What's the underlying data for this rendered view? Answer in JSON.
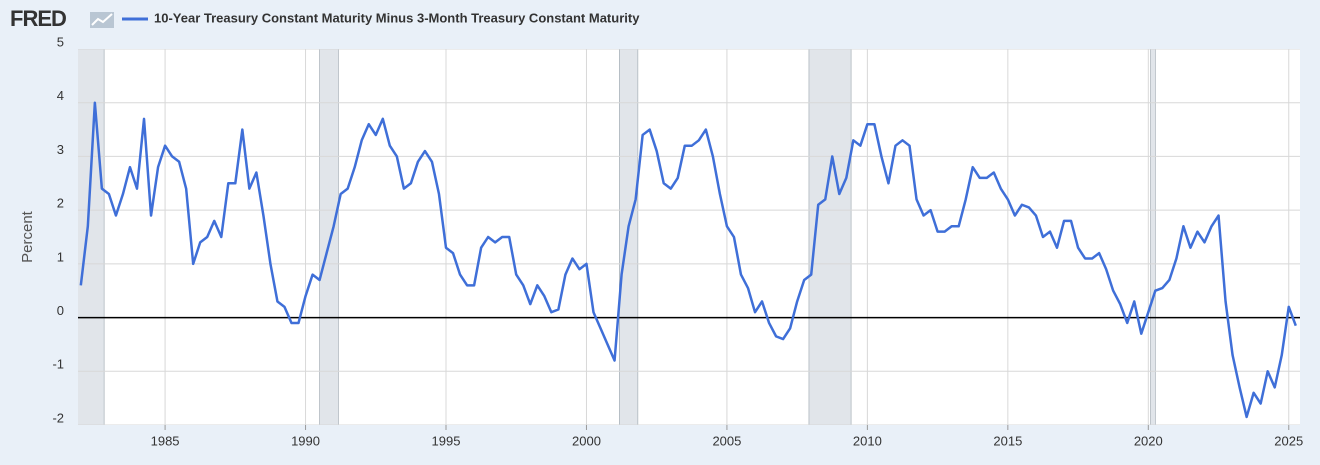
{
  "logo": "FRED",
  "chart_data": {
    "type": "line",
    "ylabel": "Percent",
    "x": [
      1982,
      1982.25,
      1982.5,
      1982.75,
      1983,
      1983.25,
      1983.5,
      1983.75,
      1984,
      1984.25,
      1984.5,
      1984.75,
      1985,
      1985.25,
      1985.5,
      1985.75,
      1986,
      1986.25,
      1986.5,
      1986.75,
      1987,
      1987.25,
      1987.5,
      1987.75,
      1988,
      1988.25,
      1988.5,
      1988.75,
      1989,
      1989.25,
      1989.5,
      1989.75,
      1990,
      1990.25,
      1990.5,
      1990.75,
      1991,
      1991.25,
      1991.5,
      1991.75,
      1992,
      1992.25,
      1992.5,
      1992.75,
      1993,
      1993.25,
      1993.5,
      1993.75,
      1994,
      1994.25,
      1994.5,
      1994.75,
      1995,
      1995.25,
      1995.5,
      1995.75,
      1996,
      1996.25,
      1996.5,
      1996.75,
      1997,
      1997.25,
      1997.5,
      1997.75,
      1998,
      1998.25,
      1998.5,
      1998.75,
      1999,
      1999.25,
      1999.5,
      1999.75,
      2000,
      2000.25,
      2000.5,
      2000.75,
      2001,
      2001.25,
      2001.5,
      2001.75,
      2002,
      2002.25,
      2002.5,
      2002.75,
      2003,
      2003.25,
      2003.5,
      2003.75,
      2004,
      2004.25,
      2004.5,
      2004.75,
      2005,
      2005.25,
      2005.5,
      2005.75,
      2006,
      2006.25,
      2006.5,
      2006.75,
      2007,
      2007.25,
      2007.5,
      2007.75,
      2008,
      2008.25,
      2008.5,
      2008.75,
      2009,
      2009.25,
      2009.5,
      2009.75,
      2010,
      2010.25,
      2010.5,
      2010.75,
      2011,
      2011.25,
      2011.5,
      2011.75,
      2012,
      2012.25,
      2012.5,
      2012.75,
      2013,
      2013.25,
      2013.5,
      2013.75,
      2014,
      2014.25,
      2014.5,
      2014.75,
      2015,
      2015.25,
      2015.5,
      2015.75,
      2016,
      2016.25,
      2016.5,
      2016.75,
      2017,
      2017.25,
      2017.5,
      2017.75,
      2018,
      2018.25,
      2018.5,
      2018.75,
      2019,
      2019.25,
      2019.5,
      2019.75,
      2020,
      2020.25,
      2020.5,
      2020.75,
      2021,
      2021.25,
      2021.5,
      2021.75,
      2022,
      2022.25,
      2022.5,
      2022.75,
      2023,
      2023.25,
      2023.5,
      2023.75,
      2024,
      2024.25,
      2024.5,
      2024.75,
      2025,
      2025.25
    ],
    "series": [
      {
        "name": "10-Year Treasury Constant Maturity Minus 3-Month Treasury Constant Maturity",
        "color": "#3f6fd8",
        "values": [
          0.6,
          1.7,
          4.0,
          2.4,
          2.3,
          1.9,
          2.3,
          2.8,
          2.4,
          3.7,
          1.9,
          2.8,
          3.2,
          3.0,
          2.9,
          2.4,
          1.0,
          1.4,
          1.5,
          1.8,
          1.5,
          2.5,
          2.5,
          3.5,
          2.4,
          2.7,
          1.9,
          1.0,
          0.3,
          0.2,
          -0.1,
          -0.1,
          0.4,
          0.8,
          0.7,
          1.2,
          1.7,
          2.3,
          2.4,
          2.8,
          3.3,
          3.6,
          3.4,
          3.7,
          3.2,
          3.0,
          2.4,
          2.5,
          2.9,
          3.1,
          2.9,
          2.3,
          1.3,
          1.2,
          0.8,
          0.6,
          0.6,
          1.3,
          1.5,
          1.4,
          1.5,
          1.5,
          0.8,
          0.6,
          0.25,
          0.6,
          0.4,
          0.1,
          0.15,
          0.8,
          1.1,
          0.9,
          1.0,
          0.1,
          -0.2,
          -0.5,
          -0.8,
          0.8,
          1.7,
          2.2,
          3.4,
          3.5,
          3.1,
          2.5,
          2.4,
          2.6,
          3.2,
          3.2,
          3.3,
          3.5,
          3.0,
          2.3,
          1.7,
          1.5,
          0.8,
          0.55,
          0.1,
          0.3,
          -0.1,
          -0.35,
          -0.4,
          -0.2,
          0.3,
          0.7,
          0.8,
          2.1,
          2.2,
          3.0,
          2.3,
          2.6,
          3.3,
          3.2,
          3.6,
          3.6,
          3.0,
          2.5,
          3.2,
          3.3,
          3.2,
          2.2,
          1.9,
          2.0,
          1.6,
          1.6,
          1.7,
          1.7,
          2.2,
          2.8,
          2.6,
          2.6,
          2.7,
          2.4,
          2.2,
          1.9,
          2.1,
          2.05,
          1.9,
          1.5,
          1.6,
          1.3,
          1.8,
          1.8,
          1.3,
          1.1,
          1.1,
          1.2,
          0.9,
          0.5,
          0.25,
          -0.1,
          0.3,
          -0.3,
          0.1,
          0.5,
          0.55,
          0.7,
          1.1,
          1.7,
          1.3,
          1.6,
          1.4,
          1.7,
          1.9,
          0.3,
          -0.7,
          -1.3,
          -1.85,
          -1.4,
          -1.6,
          -1.0,
          -1.3,
          -0.7,
          0.2,
          -0.15
        ]
      }
    ],
    "recessions": [
      [
        1981.5,
        1982.83
      ],
      [
        1990.5,
        1991.17
      ],
      [
        2001.17,
        2001.83
      ],
      [
        2007.92,
        2009.42
      ],
      [
        2020.08,
        2020.25
      ]
    ],
    "xlim": [
      1981.9,
      2025.4
    ],
    "xticks": [
      1985,
      1990,
      1995,
      2000,
      2005,
      2010,
      2015,
      2020,
      2025
    ],
    "ylim": [
      -2,
      5
    ],
    "yticks": [
      -2,
      -1,
      0,
      1,
      2,
      3,
      4,
      5
    ],
    "grid": true,
    "zero_line": true
  }
}
